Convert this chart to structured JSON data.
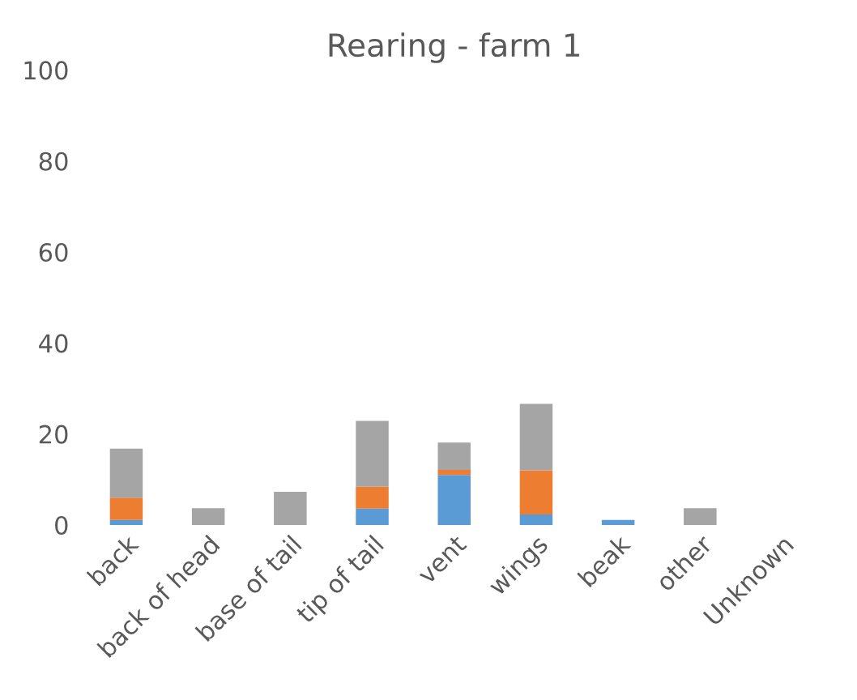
{
  "chart_data": {
    "type": "bar",
    "title": "Rearing - farm 1",
    "stacked": true,
    "categories": [
      "back",
      "back of head",
      "base of tail",
      "tip of tail",
      "vent",
      "wings",
      "beak",
      "other",
      "Unknown"
    ],
    "series": [
      {
        "color": "#5b9bd5",
        "values": [
          1.1,
          0,
          0,
          3.6,
          11.0,
          2.3,
          1.1,
          0,
          0
        ]
      },
      {
        "color": "#ed7d31",
        "values": [
          4.9,
          0,
          0,
          4.8,
          1.1,
          9.7,
          0,
          0,
          0
        ]
      },
      {
        "color": "#a5a5a5",
        "values": [
          10.8,
          3.7,
          7.3,
          14.5,
          6.0,
          14.6,
          0,
          3.7,
          0
        ]
      }
    ],
    "ylim": [
      0,
      100
    ],
    "yticks": [
      0,
      20,
      40,
      60,
      80,
      100
    ],
    "grid": false,
    "legend": false
  }
}
